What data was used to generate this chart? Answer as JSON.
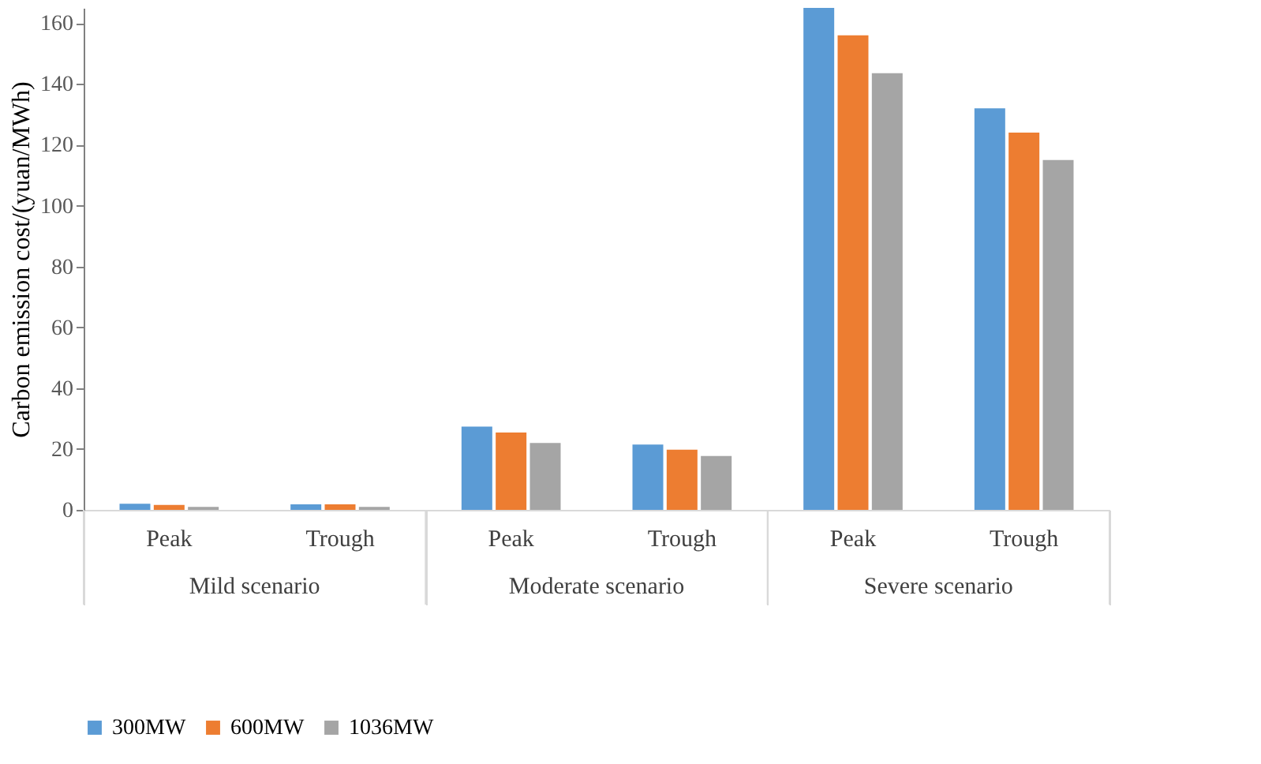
{
  "chart_data": {
    "type": "bar",
    "ylabel": "Carbon emission cost/(yuan/MWh)",
    "categories": [
      "Peak",
      "Trough",
      "Peak",
      "Trough",
      "Peak",
      "Trough"
    ],
    "annotations": [
      "Mild scenario",
      "Moderate scenario",
      "Severe scenario"
    ],
    "series": [
      {
        "name": "300MW",
        "color": "#5b9bd5",
        "values": [
          2,
          1.8,
          27.4,
          21.5,
          165,
          132
        ]
      },
      {
        "name": "600MW",
        "color": "#ed7d31",
        "values": [
          1.6,
          1.8,
          25.4,
          19.8,
          156,
          124
        ]
      },
      {
        "name": "1036MW",
        "color": "#a5a5a5",
        "values": [
          1,
          1,
          22,
          17.7,
          143.5,
          115
        ]
      }
    ],
    "ylim": [
      0,
      165
    ],
    "yticks": [
      0,
      20,
      40,
      60,
      80,
      100,
      120,
      140,
      160
    ],
    "grid": false,
    "legend": "bottom"
  }
}
